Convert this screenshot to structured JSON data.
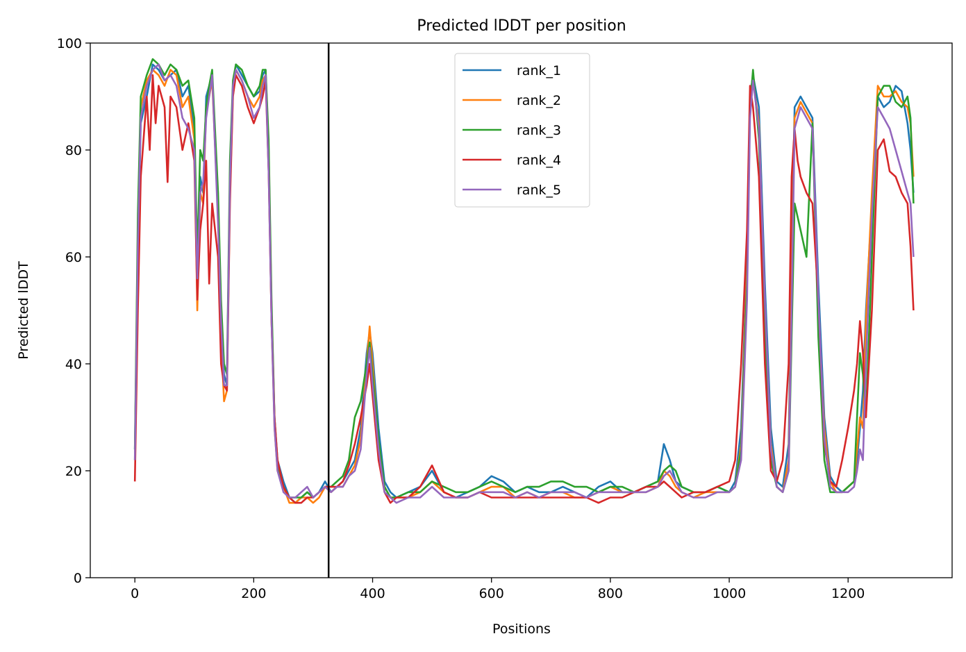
{
  "chart_data": {
    "type": "line",
    "title": "Predicted lDDT per position",
    "xlabel": "Positions",
    "ylabel": "Predicted lDDT",
    "xlim": [
      -75,
      1375
    ],
    "ylim": [
      0,
      100
    ],
    "xticks": [
      0,
      200,
      400,
      600,
      800,
      1000,
      1200
    ],
    "yticks": [
      0,
      20,
      40,
      60,
      80,
      100
    ],
    "grid": false,
    "legend_position": "top-center",
    "vertical_line_x": 326,
    "series": [
      {
        "name": "rank_1",
        "color": "#1f77b4",
        "x": [
          0,
          5,
          10,
          20,
          30,
          40,
          50,
          60,
          70,
          80,
          90,
          100,
          105,
          110,
          115,
          120,
          125,
          130,
          140,
          145,
          150,
          155,
          160,
          165,
          170,
          180,
          190,
          200,
          210,
          215,
          220,
          225,
          230,
          235,
          240,
          250,
          260,
          270,
          280,
          290,
          300,
          310,
          320,
          330,
          340,
          350,
          360,
          370,
          380,
          390,
          395,
          400,
          410,
          420,
          430,
          440,
          460,
          480,
          500,
          520,
          540,
          560,
          580,
          600,
          620,
          640,
          660,
          680,
          700,
          720,
          740,
          760,
          780,
          800,
          820,
          840,
          860,
          880,
          890,
          900,
          910,
          920,
          940,
          960,
          980,
          1000,
          1010,
          1020,
          1030,
          1035,
          1040,
          1050,
          1060,
          1070,
          1080,
          1090,
          1100,
          1105,
          1110,
          1120,
          1130,
          1140,
          1150,
          1160,
          1170,
          1180,
          1190,
          1200,
          1210,
          1215,
          1220,
          1225,
          1230,
          1240,
          1250,
          1260,
          1270,
          1280,
          1290,
          1300,
          1305,
          1310
        ],
        "y": [
          24,
          60,
          85,
          90,
          96,
          95,
          93,
          94,
          95,
          90,
          92,
          84,
          55,
          75,
          72,
          90,
          92,
          94,
          70,
          50,
          38,
          36,
          75,
          92,
          96,
          94,
          92,
          90,
          91,
          94,
          95,
          80,
          50,
          30,
          22,
          18,
          15,
          14,
          15,
          16,
          15,
          16,
          18,
          16,
          17,
          18,
          20,
          22,
          28,
          42,
          46,
          42,
          28,
          18,
          16,
          15,
          16,
          17,
          20,
          16,
          15,
          16,
          17,
          19,
          18,
          16,
          17,
          16,
          16,
          17,
          16,
          15,
          17,
          18,
          16,
          16,
          17,
          18,
          25,
          22,
          18,
          17,
          16,
          16,
          17,
          16,
          18,
          28,
          60,
          90,
          94,
          88,
          55,
          28,
          18,
          17,
          25,
          60,
          88,
          90,
          88,
          86,
          55,
          30,
          19,
          17,
          16,
          17,
          18,
          22,
          28,
          35,
          50,
          70,
          90,
          88,
          89,
          92,
          91,
          85,
          80,
          72
        ]
      },
      {
        "name": "rank_2",
        "color": "#ff7f0e",
        "x": [
          0,
          5,
          10,
          20,
          30,
          40,
          50,
          60,
          70,
          80,
          90,
          100,
          105,
          110,
          115,
          120,
          125,
          130,
          140,
          145,
          150,
          155,
          160,
          165,
          170,
          180,
          190,
          200,
          210,
          215,
          220,
          225,
          230,
          235,
          240,
          250,
          260,
          270,
          280,
          290,
          300,
          310,
          320,
          330,
          340,
          350,
          360,
          370,
          380,
          390,
          395,
          400,
          410,
          420,
          430,
          440,
          460,
          480,
          500,
          520,
          540,
          560,
          580,
          600,
          620,
          640,
          660,
          680,
          700,
          720,
          740,
          760,
          780,
          800,
          820,
          840,
          860,
          880,
          890,
          900,
          910,
          920,
          940,
          960,
          980,
          1000,
          1010,
          1020,
          1030,
          1035,
          1040,
          1050,
          1060,
          1070,
          1080,
          1090,
          1100,
          1105,
          1110,
          1120,
          1130,
          1140,
          1150,
          1160,
          1170,
          1180,
          1190,
          1200,
          1210,
          1215,
          1220,
          1225,
          1230,
          1240,
          1250,
          1260,
          1270,
          1280,
          1290,
          1300,
          1305,
          1310
        ],
        "y": [
          22,
          65,
          88,
          93,
          95,
          94,
          92,
          95,
          94,
          88,
          90,
          82,
          50,
          72,
          70,
          88,
          90,
          93,
          68,
          45,
          33,
          35,
          72,
          90,
          95,
          93,
          90,
          88,
          90,
          93,
          94,
          78,
          48,
          28,
          20,
          17,
          14,
          14,
          15,
          15,
          14,
          15,
          17,
          16,
          17,
          17,
          19,
          21,
          26,
          40,
          47,
          40,
          25,
          17,
          15,
          15,
          15,
          16,
          18,
          16,
          15,
          15,
          16,
          17,
          17,
          15,
          16,
          15,
          16,
          16,
          15,
          15,
          16,
          17,
          16,
          16,
          16,
          17,
          20,
          19,
          17,
          16,
          15,
          16,
          16,
          16,
          17,
          25,
          58,
          88,
          93,
          85,
          50,
          25,
          17,
          16,
          22,
          55,
          86,
          89,
          87,
          85,
          50,
          28,
          18,
          16,
          16,
          17,
          18,
          24,
          30,
          28,
          48,
          72,
          92,
          90,
          90,
          91,
          89,
          88,
          85,
          75
        ]
      },
      {
        "name": "rank_3",
        "color": "#2ca02c",
        "x": [
          0,
          5,
          10,
          20,
          30,
          40,
          50,
          60,
          70,
          80,
          90,
          100,
          105,
          110,
          115,
          120,
          125,
          130,
          140,
          145,
          150,
          155,
          160,
          165,
          170,
          180,
          190,
          200,
          210,
          215,
          220,
          225,
          230,
          235,
          240,
          250,
          260,
          270,
          280,
          290,
          300,
          310,
          320,
          330,
          340,
          350,
          360,
          370,
          380,
          390,
          395,
          400,
          410,
          420,
          430,
          440,
          460,
          480,
          500,
          520,
          540,
          560,
          580,
          600,
          620,
          640,
          660,
          680,
          700,
          720,
          740,
          760,
          780,
          800,
          820,
          840,
          860,
          880,
          890,
          900,
          910,
          920,
          940,
          960,
          980,
          1000,
          1010,
          1020,
          1030,
          1035,
          1040,
          1050,
          1060,
          1070,
          1080,
          1090,
          1100,
          1105,
          1110,
          1120,
          1130,
          1140,
          1150,
          1160,
          1170,
          1180,
          1190,
          1200,
          1210,
          1215,
          1220,
          1225,
          1230,
          1240,
          1250,
          1260,
          1270,
          1280,
          1290,
          1300,
          1305,
          1310
        ],
        "y": [
          24,
          68,
          90,
          94,
          97,
          96,
          94,
          96,
          95,
          92,
          93,
          86,
          60,
          80,
          78,
          88,
          92,
          95,
          72,
          52,
          40,
          38,
          78,
          93,
          96,
          95,
          92,
          90,
          92,
          95,
          95,
          82,
          52,
          30,
          21,
          17,
          15,
          15,
          15,
          16,
          15,
          16,
          17,
          17,
          18,
          19,
          22,
          30,
          33,
          40,
          44,
          38,
          26,
          17,
          15,
          15,
          16,
          16,
          18,
          17,
          16,
          16,
          17,
          18,
          17,
          16,
          17,
          17,
          18,
          18,
          17,
          17,
          16,
          17,
          17,
          16,
          17,
          18,
          20,
          21,
          20,
          17,
          16,
          16,
          17,
          16,
          17,
          24,
          55,
          88,
          95,
          82,
          45,
          22,
          17,
          16,
          20,
          45,
          70,
          65,
          60,
          85,
          45,
          22,
          16,
          16,
          16,
          17,
          18,
          30,
          42,
          38,
          30,
          60,
          90,
          92,
          92,
          89,
          88,
          90,
          86,
          70
        ]
      },
      {
        "name": "rank_4",
        "color": "#d62728",
        "x": [
          0,
          5,
          10,
          20,
          25,
          30,
          35,
          40,
          50,
          55,
          60,
          70,
          80,
          90,
          100,
          105,
          110,
          115,
          120,
          125,
          130,
          140,
          145,
          150,
          155,
          160,
          165,
          170,
          180,
          190,
          200,
          210,
          215,
          220,
          225,
          230,
          235,
          240,
          250,
          260,
          270,
          280,
          290,
          300,
          310,
          320,
          330,
          340,
          350,
          360,
          370,
          380,
          390,
          395,
          400,
          410,
          420,
          430,
          440,
          460,
          480,
          500,
          520,
          540,
          560,
          580,
          600,
          620,
          640,
          660,
          680,
          700,
          720,
          740,
          760,
          780,
          800,
          820,
          840,
          860,
          880,
          890,
          900,
          910,
          920,
          940,
          960,
          980,
          1000,
          1010,
          1020,
          1030,
          1035,
          1040,
          1050,
          1060,
          1070,
          1080,
          1090,
          1100,
          1105,
          1110,
          1115,
          1120,
          1130,
          1140,
          1150,
          1160,
          1170,
          1180,
          1190,
          1200,
          1210,
          1215,
          1220,
          1225,
          1230,
          1240,
          1250,
          1260,
          1270,
          1280,
          1290,
          1300,
          1305,
          1310
        ],
        "y": [
          18,
          50,
          75,
          90,
          80,
          94,
          85,
          92,
          88,
          74,
          90,
          88,
          80,
          85,
          78,
          52,
          65,
          70,
          78,
          55,
          70,
          60,
          40,
          36,
          35,
          70,
          90,
          94,
          92,
          88,
          85,
          88,
          90,
          93,
          76,
          48,
          30,
          22,
          17,
          15,
          14,
          14,
          15,
          15,
          16,
          17,
          17,
          17,
          18,
          21,
          25,
          30,
          36,
          40,
          34,
          22,
          16,
          14,
          15,
          15,
          17,
          21,
          16,
          15,
          15,
          16,
          15,
          15,
          15,
          15,
          15,
          15,
          15,
          15,
          15,
          14,
          15,
          15,
          16,
          17,
          17,
          18,
          17,
          16,
          15,
          16,
          16,
          17,
          18,
          22,
          40,
          65,
          92,
          88,
          75,
          40,
          20,
          18,
          22,
          40,
          75,
          84,
          78,
          75,
          72,
          70,
          52,
          25,
          18,
          17,
          22,
          28,
          35,
          40,
          48,
          42,
          30,
          50,
          80,
          82,
          76,
          75,
          72,
          70,
          62,
          50
        ]
      },
      {
        "name": "rank_5",
        "color": "#9467bd",
        "x": [
          0,
          5,
          10,
          20,
          30,
          40,
          50,
          60,
          70,
          80,
          90,
          100,
          105,
          110,
          115,
          120,
          125,
          130,
          140,
          145,
          150,
          155,
          160,
          165,
          170,
          180,
          190,
          200,
          210,
          215,
          220,
          225,
          230,
          235,
          240,
          250,
          260,
          270,
          280,
          290,
          300,
          310,
          320,
          330,
          340,
          350,
          360,
          370,
          380,
          390,
          395,
          400,
          410,
          420,
          430,
          440,
          460,
          480,
          500,
          520,
          540,
          560,
          580,
          600,
          620,
          640,
          660,
          680,
          700,
          720,
          740,
          760,
          780,
          800,
          820,
          840,
          860,
          880,
          890,
          900,
          910,
          920,
          940,
          960,
          980,
          1000,
          1010,
          1020,
          1030,
          1035,
          1040,
          1050,
          1060,
          1070,
          1080,
          1090,
          1100,
          1105,
          1110,
          1120,
          1130,
          1140,
          1150,
          1160,
          1170,
          1180,
          1190,
          1200,
          1210,
          1215,
          1220,
          1225,
          1230,
          1240,
          1250,
          1260,
          1270,
          1280,
          1290,
          1300,
          1305,
          1310
        ],
        "y": [
          22,
          62,
          86,
          92,
          95,
          96,
          93,
          94,
          92,
          86,
          84,
          80,
          56,
          72,
          74,
          86,
          90,
          94,
          66,
          48,
          36,
          36,
          74,
          92,
          95,
          93,
          90,
          86,
          88,
          92,
          94,
          76,
          48,
          28,
          20,
          16,
          15,
          15,
          16,
          17,
          15,
          16,
          17,
          16,
          17,
          17,
          19,
          20,
          24,
          38,
          43,
          36,
          24,
          16,
          15,
          14,
          15,
          15,
          17,
          15,
          15,
          15,
          16,
          16,
          16,
          15,
          16,
          15,
          16,
          16,
          16,
          15,
          16,
          16,
          16,
          16,
          16,
          17,
          19,
          20,
          18,
          16,
          15,
          15,
          16,
          16,
          17,
          22,
          52,
          86,
          93,
          84,
          52,
          24,
          17,
          16,
          20,
          50,
          84,
          88,
          86,
          84,
          52,
          26,
          17,
          16,
          16,
          16,
          17,
          20,
          24,
          22,
          40,
          68,
          88,
          86,
          84,
          80,
          76,
          72,
          70,
          60
        ]
      }
    ]
  }
}
